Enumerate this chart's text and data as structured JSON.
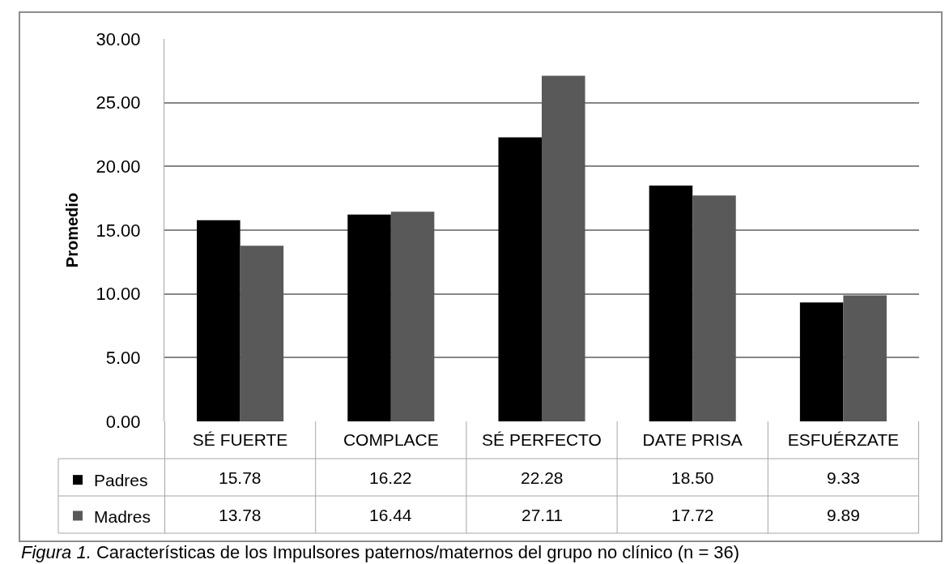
{
  "chart_data": {
    "type": "bar",
    "ylabel": "Promedio",
    "categories": [
      "SÉ FUERTE",
      "COMPLACE",
      "SÉ PERFECTO",
      "DATE PRISA",
      "ESFUÉRZATE"
    ],
    "series": [
      {
        "name": "Padres",
        "color": "#000000",
        "values": [
          15.78,
          16.22,
          22.28,
          18.5,
          9.33
        ],
        "value_labels": [
          "15.78",
          "16.22",
          "22.28",
          "18.50",
          "9.33"
        ]
      },
      {
        "name": "Madres",
        "color": "#595959",
        "values": [
          13.78,
          16.44,
          27.11,
          17.72,
          9.89
        ],
        "value_labels": [
          "13.78",
          "16.44",
          "27.11",
          "17.72",
          "9.89"
        ]
      }
    ],
    "ylim": [
      0,
      30
    ],
    "yticks": [
      {
        "value": 0,
        "label": "0.00"
      },
      {
        "value": 5,
        "label": "5.00"
      },
      {
        "value": 10,
        "label": "10.00"
      },
      {
        "value": 15,
        "label": "15.00"
      },
      {
        "value": 20,
        "label": "20.00"
      },
      {
        "value": 25,
        "label": "25.00"
      },
      {
        "value": 30,
        "label": "30.00"
      }
    ],
    "grid": "y",
    "legend": "bottom left",
    "annotations": [
      "Figura 1. Características de los Impulsores paternos/maternos del grupo no clínico (n = 36)"
    ]
  }
}
